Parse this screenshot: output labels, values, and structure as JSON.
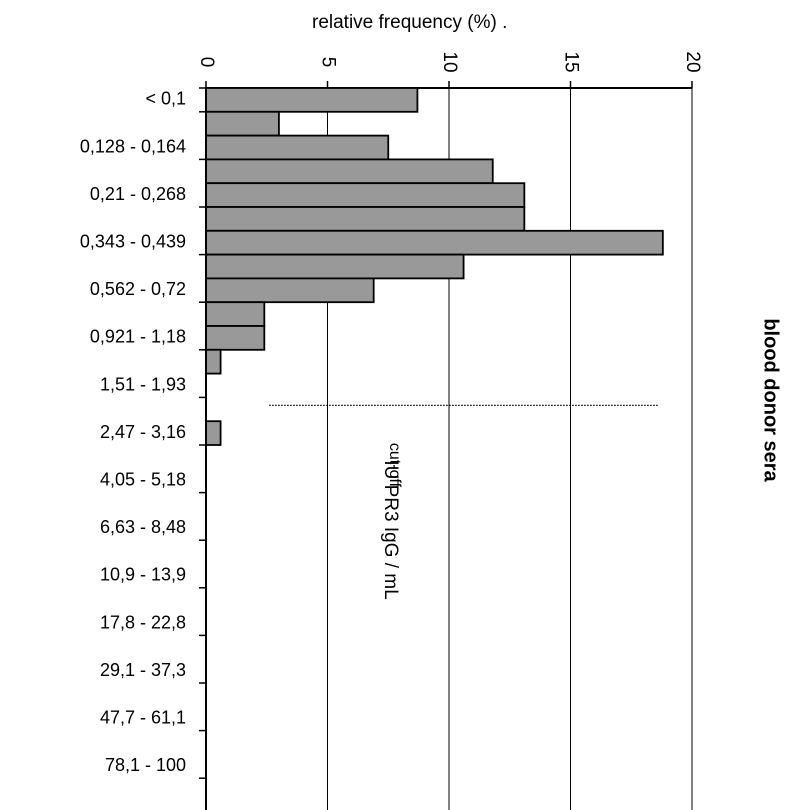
{
  "chart_data": {
    "type": "bar",
    "orientation": "horizontal",
    "title": "blood donor sera",
    "xlabel": "relative frequency (%)   .",
    "ylabel": "IU  PR3 IgG / mL",
    "xlim": [
      0,
      20
    ],
    "x_ticks": [
      "0",
      "5",
      "10",
      "15",
      "20"
    ],
    "grid": "vertical",
    "bar_color": "#999999",
    "bar_edge_color": "#000000",
    "category_labels": [
      {
        "label": "< 0,1",
        "row": 0
      },
      {
        "label": "0,128 - 0,164",
        "row": 2
      },
      {
        "label": "0,21 - 0,268",
        "row": 4
      },
      {
        "label": "0,343 - 0,439",
        "row": 6
      },
      {
        "label": "0,562 - 0,72",
        "row": 8
      },
      {
        "label": "0,921 - 1,18",
        "row": 10
      },
      {
        "label": "1,51 - 1,93",
        "row": 12
      },
      {
        "label": "2,47 - 3,16",
        "row": 14
      },
      {
        "label": "4,05 - 5,18",
        "row": 16
      },
      {
        "label": "6,63 - 8,48",
        "row": 18
      },
      {
        "label": "10,9 - 13,9",
        "row": 20
      },
      {
        "label": "17,8 - 22,8",
        "row": 22
      },
      {
        "label": "29,1 - 37,3",
        "row": 24
      },
      {
        "label": "47,7 - 61,1",
        "row": 26
      },
      {
        "label": "78,1 - 100",
        "row": 28
      }
    ],
    "row_count": 30,
    "values": [
      8.7,
      3.0,
      7.5,
      11.8,
      13.1,
      13.1,
      18.8,
      10.6,
      6.9,
      2.4,
      2.4,
      0.6,
      0,
      0,
      0.6,
      0,
      0,
      0,
      0,
      0,
      0,
      0,
      0,
      0,
      0,
      0,
      0,
      0,
      0,
      0
    ],
    "annotation": {
      "text": "cut-off",
      "between_rows": [
        12,
        13
      ],
      "x_range": [
        2.6,
        18.6
      ]
    }
  }
}
